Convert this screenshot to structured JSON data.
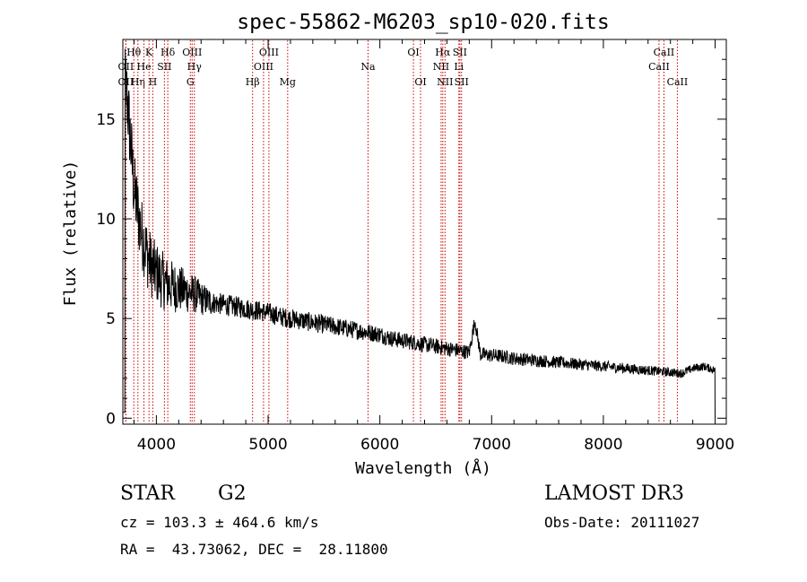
{
  "chart_data": {
    "type": "line",
    "title": "spec-55862-M6203_sp10-020.fits",
    "xlabel": "Wavelength (Å)",
    "ylabel": "Flux (relative)",
    "xlim": [
      3700,
      9100
    ],
    "ylim": [
      -0.3,
      19
    ],
    "xticks": [
      4000,
      5000,
      6000,
      7000,
      8000,
      9000
    ],
    "yticks": [
      0,
      5,
      10,
      15
    ],
    "grid": false,
    "series": [
      {
        "name": "spectrum",
        "x": [
          3700,
          3720,
          3740,
          3760,
          3780,
          3800,
          3830,
          3860,
          3890,
          3920,
          3950,
          3980,
          4000,
          4030,
          4060,
          4100,
          4150,
          4200,
          4250,
          4300,
          4350,
          4400,
          4500,
          4600,
          4700,
          4800,
          4900,
          5000,
          5100,
          5200,
          5300,
          5400,
          5500,
          5600,
          5700,
          5800,
          5900,
          6000,
          6100,
          6200,
          6300,
          6400,
          6500,
          6600,
          6700,
          6800,
          6850,
          6900,
          7000,
          7100,
          7200,
          7300,
          7400,
          7500,
          7600,
          7700,
          7800,
          7900,
          8000,
          8100,
          8200,
          8300,
          8400,
          8500,
          8600,
          8700,
          8800,
          8900,
          9000
        ],
        "y": [
          0.5,
          17,
          16,
          14.5,
          13,
          11.5,
          10.5,
          9.5,
          8.8,
          8.2,
          7.7,
          7.4,
          7.3,
          7.1,
          6.9,
          6.7,
          6.6,
          6.5,
          6.4,
          6.3,
          6.2,
          6.0,
          5.8,
          5.7,
          5.6,
          5.5,
          5.4,
          5.3,
          5.1,
          5.0,
          4.9,
          4.8,
          4.7,
          4.6,
          4.5,
          4.4,
          4.3,
          4.2,
          4.0,
          3.9,
          3.8,
          3.7,
          3.6,
          3.5,
          3.4,
          3.3,
          4.9,
          3.2,
          3.15,
          3.1,
          3.0,
          2.95,
          2.9,
          2.85,
          2.8,
          2.75,
          2.7,
          2.65,
          2.6,
          2.55,
          2.5,
          2.45,
          2.4,
          2.35,
          2.3,
          2.25,
          2.5,
          2.6,
          2.4
        ]
      }
    ],
    "lines": [
      {
        "label": "OII",
        "x": 3727,
        "row": 2
      },
      {
        "label": "OII",
        "x": 3727,
        "row": 3
      },
      {
        "label": "Hθ",
        "x": 3798,
        "row": 1
      },
      {
        "label": "Hη",
        "x": 3835,
        "row": 3
      },
      {
        "label": "He",
        "x": 3889,
        "row": 2
      },
      {
        "label": "K",
        "x": 3934,
        "row": 1
      },
      {
        "label": "H",
        "x": 3968,
        "row": 3
      },
      {
        "label": "SII",
        "x": 4072,
        "row": 2
      },
      {
        "label": "Hδ",
        "x": 4102,
        "row": 1
      },
      {
        "label": "OIII",
        "x": 4320,
        "row": 1
      },
      {
        "label": "Hγ",
        "x": 4340,
        "row": 2
      },
      {
        "label": "G",
        "x": 4304,
        "row": 3
      },
      {
        "label": "Hβ",
        "x": 4861,
        "row": 3
      },
      {
        "label": "OIII",
        "x": 5007,
        "row": 1
      },
      {
        "label": "OIII",
        "x": 4959,
        "row": 2
      },
      {
        "label": "Mg",
        "x": 5175,
        "row": 3
      },
      {
        "label": "Na",
        "x": 5894,
        "row": 2
      },
      {
        "label": "OI",
        "x": 6300,
        "row": 1
      },
      {
        "label": "OI",
        "x": 6364,
        "row": 3
      },
      {
        "label": "Hα",
        "x": 6563,
        "row": 1
      },
      {
        "label": "NII",
        "x": 6548,
        "row": 2
      },
      {
        "label": "NII",
        "x": 6583,
        "row": 3
      },
      {
        "label": "SII",
        "x": 6716,
        "row": 1
      },
      {
        "label": "Li",
        "x": 6707,
        "row": 2
      },
      {
        "label": "SII",
        "x": 6731,
        "row": 3
      },
      {
        "label": "CaII",
        "x": 8542,
        "row": 1
      },
      {
        "label": "CaII",
        "x": 8498,
        "row": 2
      },
      {
        "label": "CaII",
        "x": 8662,
        "row": 3
      }
    ]
  },
  "info": {
    "class": "STAR",
    "subclass": "G2",
    "survey": "LAMOST DR3",
    "cz": "cz = 103.3 ± 464.6 km/s",
    "obs_date": "Obs-Date: 20111027",
    "radec": "RA =  43.73062, DEC =  28.11800"
  },
  "colors": {
    "spectrum": "#000000",
    "line_marker": "#cc0000",
    "axis": "#000000"
  }
}
